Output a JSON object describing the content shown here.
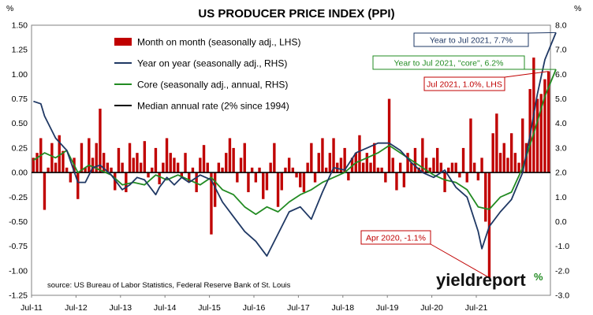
{
  "chart_data": {
    "type": "bar",
    "title": "US PRODUCER PRICE INDEX (PPI)",
    "left_axis_unit": "%",
    "right_axis_unit": "%",
    "ylim_left": [
      -1.25,
      1.5
    ],
    "ylim_right": [
      -3.0,
      8.0
    ],
    "left_ticks": [
      "1.50",
      "1.25",
      "1.00",
      "0.75",
      "0.50",
      "0.25",
      "0.00",
      "-0.25",
      "-0.50",
      "-0.75",
      "-1.00",
      "-1.25"
    ],
    "right_ticks": [
      "8.0",
      "7.0",
      "6.0",
      "5.0",
      "4.0",
      "3.0",
      "2.0",
      "1.0",
      "0.0",
      "-1.0",
      "-2.0",
      "-3.0"
    ],
    "x_ticks": [
      "Jul-11",
      "Jul-12",
      "Jul-13",
      "Jul-14",
      "Jul-15",
      "Jul-16",
      "Jul-17",
      "Jul-18",
      "Jul-19",
      "Jul-20",
      "Jul-21"
    ],
    "start": "Jul-11",
    "end": "Jul-21",
    "legend": [
      {
        "label": "Month on month (seasonally adj., LHS)",
        "color": "#c00000",
        "kind": "bar"
      },
      {
        "label": "Year on year (seasonally adj., RHS)",
        "color": "#1f3864",
        "kind": "line"
      },
      {
        "label": "Core (seasonally adj., annual, RHS)",
        "color": "#228b22",
        "kind": "line"
      },
      {
        "label": "Median annual rate (2% since 1994)",
        "color": "#000000",
        "kind": "line"
      }
    ],
    "series": [
      {
        "name": "Month on month (seasonally adj., LHS)",
        "axis": "left",
        "color": "#c00000",
        "values": [
          0.15,
          0.2,
          0.35,
          -0.38,
          0.05,
          0.3,
          0.1,
          0.38,
          0.22,
          0.05,
          -0.1,
          0.15,
          -0.27,
          0.3,
          0.05,
          0.35,
          0.15,
          0.3,
          0.65,
          0.2,
          0.1,
          0.05,
          -0.18,
          0.25,
          0.1,
          -0.2,
          0.3,
          0.15,
          0.2,
          0.1,
          0.32,
          -0.05,
          0.05,
          0.25,
          -0.12,
          0.1,
          0.35,
          0.2,
          0.15,
          0.1,
          -0.05,
          0.2,
          -0.1,
          0.05,
          -0.2,
          0.15,
          0.28,
          0.1,
          -0.63,
          -0.35,
          0.1,
          0.05,
          0.2,
          0.35,
          0.25,
          -0.1,
          0.15,
          0.3,
          -0.2,
          0.05,
          -0.1,
          0.05,
          -0.27,
          -0.18,
          0.1,
          0.3,
          -0.35,
          -0.18,
          0.05,
          0.15,
          0.05,
          -0.05,
          -0.15,
          -0.2,
          0.1,
          0.3,
          -0.1,
          0.2,
          0.35,
          0.05,
          0.2,
          0.35,
          0.1,
          0.15,
          0.25,
          -0.08,
          0.15,
          0.2,
          0.38,
          0.1,
          0.2,
          0.1,
          0.3,
          0.05,
          0.05,
          -0.1,
          0.75,
          0.15,
          -0.18,
          0.1,
          -0.15,
          0.2,
          0.1,
          0.25,
          0.05,
          0.35,
          0.15,
          0.05,
          0.15,
          0.25,
          0.1,
          -0.2,
          0.05,
          0.1,
          0.1,
          -0.05,
          0.25,
          -0.1,
          0.55,
          0.1,
          -0.08,
          0.15,
          -0.5,
          -1.07,
          0.4,
          0.6,
          0.2,
          0.3,
          0.15,
          0.4,
          0.2,
          0.1,
          0.55,
          0.3,
          0.85,
          1.17,
          0.75,
          0.8,
          0.95,
          1.03
        ]
      },
      {
        "name": "Year on year (seasonally adj., RHS)",
        "axis": "right",
        "color": "#1f3864",
        "points": [
          [
            0,
            4.9
          ],
          [
            2,
            4.8
          ],
          [
            3,
            4.3
          ],
          [
            6,
            3.4
          ],
          [
            9,
            2.9
          ],
          [
            12,
            1.6
          ],
          [
            14,
            1.6
          ],
          [
            16,
            2.2
          ],
          [
            18,
            2.3
          ],
          [
            21,
            1.9
          ],
          [
            24,
            1.3
          ],
          [
            26,
            1.5
          ],
          [
            28,
            1.8
          ],
          [
            30,
            1.7
          ],
          [
            33,
            1.1
          ],
          [
            34,
            1.4
          ],
          [
            36,
            1.8
          ],
          [
            38,
            1.5
          ],
          [
            40,
            1.8
          ],
          [
            42,
            1.6
          ],
          [
            45,
            1.9
          ],
          [
            48,
            1.7
          ],
          [
            51,
            0.8
          ],
          [
            54,
            0.2
          ],
          [
            57,
            -0.4
          ],
          [
            60,
            -0.8
          ],
          [
            63,
            -1.4
          ],
          [
            66,
            -0.5
          ],
          [
            69,
            0.4
          ],
          [
            72,
            0.6
          ],
          [
            75,
            0.1
          ],
          [
            78,
            1.2
          ],
          [
            81,
            2.2
          ],
          [
            84,
            2.1
          ],
          [
            87,
            2.8
          ],
          [
            90,
            3.0
          ],
          [
            93,
            3.2
          ],
          [
            96,
            3.2
          ],
          [
            99,
            2.9
          ],
          [
            102,
            2.4
          ],
          [
            105,
            2.0
          ],
          [
            108,
            1.8
          ],
          [
            111,
            2.1
          ],
          [
            114,
            1.4
          ],
          [
            117,
            1.0
          ],
          [
            120,
            -0.4
          ],
          [
            121,
            -1.1
          ],
          [
            123,
            -0.2
          ],
          [
            126,
            0.4
          ],
          [
            129,
            0.9
          ],
          [
            132,
            2.0
          ],
          [
            134,
            3.5
          ],
          [
            136,
            5.2
          ],
          [
            138,
            6.6
          ],
          [
            141,
            7.7
          ]
        ]
      },
      {
        "name": "Core (seasonally adj., annual, RHS)",
        "axis": "right",
        "color": "#228b22",
        "points": [
          [
            0,
            2.5
          ],
          [
            3,
            2.8
          ],
          [
            6,
            2.6
          ],
          [
            9,
            2.9
          ],
          [
            12,
            2.0
          ],
          [
            15,
            2.3
          ],
          [
            18,
            2.1
          ],
          [
            21,
            1.9
          ],
          [
            24,
            1.5
          ],
          [
            27,
            1.6
          ],
          [
            30,
            1.5
          ],
          [
            33,
            1.9
          ],
          [
            36,
            1.7
          ],
          [
            39,
            1.9
          ],
          [
            42,
            1.7
          ],
          [
            45,
            1.5
          ],
          [
            48,
            1.8
          ],
          [
            51,
            1.3
          ],
          [
            54,
            1.1
          ],
          [
            57,
            0.6
          ],
          [
            60,
            0.3
          ],
          [
            63,
            0.6
          ],
          [
            66,
            0.4
          ],
          [
            69,
            0.8
          ],
          [
            72,
            1.1
          ],
          [
            75,
            1.3
          ],
          [
            78,
            1.6
          ],
          [
            81,
            1.8
          ],
          [
            84,
            2.0
          ],
          [
            87,
            2.4
          ],
          [
            90,
            2.6
          ],
          [
            93,
            2.8
          ],
          [
            96,
            3.1
          ],
          [
            99,
            2.8
          ],
          [
            102,
            2.5
          ],
          [
            105,
            2.2
          ],
          [
            108,
            1.9
          ],
          [
            111,
            1.7
          ],
          [
            114,
            1.6
          ],
          [
            117,
            1.3
          ],
          [
            120,
            0.6
          ],
          [
            123,
            0.5
          ],
          [
            126,
            1.0
          ],
          [
            129,
            1.2
          ],
          [
            132,
            2.2
          ],
          [
            135,
            3.6
          ],
          [
            138,
            5.1
          ],
          [
            141,
            6.2
          ]
        ]
      },
      {
        "name": "Median annual rate (2% since 1994)",
        "axis": "right",
        "color": "#000000",
        "constant": 2.0
      }
    ],
    "annotations": [
      {
        "text": "Year to Jul 2021, 7.7%",
        "color": "#1f3864"
      },
      {
        "text": "Year to Jul 2021, \"core\", 6.2%",
        "color": "#228b22"
      },
      {
        "text": "Jul 2021, 1.0%, LHS",
        "color": "#c00000"
      },
      {
        "text": "Apr 2020, -1.1%",
        "color": "#c00000"
      }
    ],
    "source": "source: US Bureau of Labor Statistics, Federal Reserve Bank of St. Louis",
    "brand": {
      "main": "yieldreport",
      "mark": "%"
    }
  }
}
